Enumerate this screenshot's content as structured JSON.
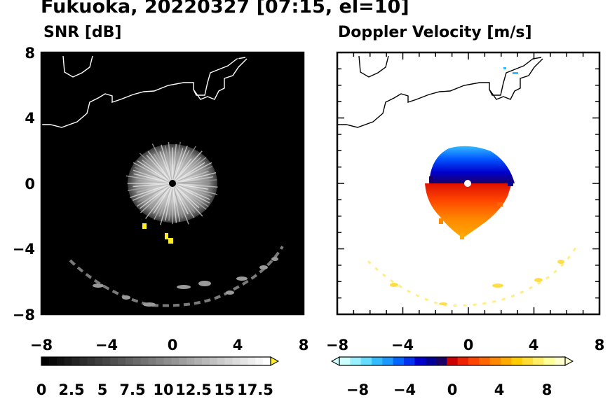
{
  "title": "Fukuoka, 20220327 [07:15, el=10]",
  "panels": [
    {
      "id": "snr",
      "title": "SNR [dB]"
    },
    {
      "id": "doppler",
      "title": "Doppler Velocity [m/s]"
    }
  ],
  "chart_data": [
    {
      "type": "heatmap",
      "title": "SNR [dB]",
      "xlim": [
        -8,
        8
      ],
      "ylim": [
        -8,
        8
      ],
      "xticks": [
        "−8",
        "−4",
        "0",
        "4",
        "8"
      ],
      "yticks": [
        "8",
        "4",
        "0",
        "−4",
        "−8"
      ],
      "background": "#000000",
      "colorbar": {
        "ticks": [
          "0",
          "2.5",
          "5",
          "7.5",
          "10",
          "12.5",
          "15",
          "17.5"
        ],
        "range": [
          0,
          18.75
        ],
        "extend": "max"
      }
    },
    {
      "type": "heatmap",
      "title": "Doppler Velocity [m/s]",
      "xlim": [
        -8,
        8
      ],
      "ylim": [
        -8,
        8
      ],
      "xticks": [
        "−8",
        "−4",
        "0",
        "4",
        "8"
      ],
      "yticks": [],
      "background": "#ffffff",
      "colorbar": {
        "ticks": [
          "−8",
          "−4",
          "0",
          "4",
          "8"
        ],
        "range": [
          -10,
          10
        ],
        "extend": "both"
      }
    }
  ],
  "colors": {
    "negative": [
      "#ccffff",
      "#99f0ff",
      "#66ddff",
      "#33bbff",
      "#1a99ff",
      "#0066ff",
      "#0033ee",
      "#0000cc",
      "#000099",
      "#1a0066"
    ],
    "positive": [
      "#cc0000",
      "#ee2200",
      "#ff4400",
      "#ff6600",
      "#ff8800",
      "#ffaa00",
      "#ffcc00",
      "#ffdd33",
      "#ffee66",
      "#ffff99",
      "#ffffcc"
    ]
  }
}
